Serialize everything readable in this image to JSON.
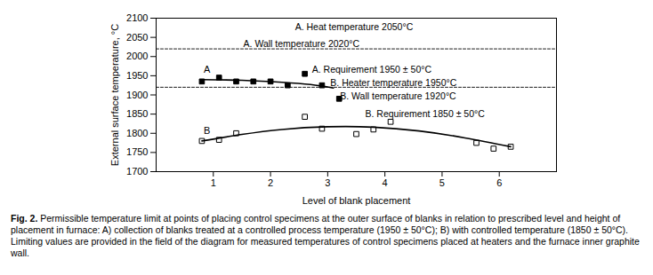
{
  "chart_data": {
    "type": "scatter",
    "xlabel": "Level of blank placement",
    "ylabel": "External surface temperature, °C",
    "xlim": [
      0,
      7
    ],
    "ylim": [
      1700,
      2100
    ],
    "xticks": [
      1,
      2,
      3,
      4,
      5,
      6
    ],
    "yticks": [
      1700,
      1750,
      1800,
      1850,
      1900,
      1950,
      2000,
      2050,
      2100
    ],
    "grid": false,
    "series": [
      {
        "type": "scatter",
        "marker": "filled_square",
        "color": "#000000",
        "x": [
          0.8,
          1.1,
          1.4,
          1.7,
          2.0,
          2.3,
          2.6,
          2.9,
          3.2
        ],
        "values": [
          1935,
          1945,
          1935,
          1935,
          1935,
          1925,
          1955,
          1925,
          1890
        ]
      },
      {
        "type": "scatter",
        "marker": "open_square",
        "color": "#000000",
        "x": [
          0.8,
          1.1,
          1.4,
          2.6,
          2.9,
          3.5,
          3.8,
          4.1,
          5.6,
          5.9,
          6.2
        ],
        "values": [
          1780,
          1783,
          1800,
          1843,
          1812,
          1798,
          1810,
          1830,
          1775,
          1760,
          1765
        ]
      },
      {
        "name": "A",
        "type": "line",
        "line_style": "solid",
        "color": "#000000",
        "x": [
          0.8,
          1.5,
          2.2,
          2.7,
          3.1
        ],
        "values": [
          1940,
          1938,
          1933,
          1927,
          1918
        ]
      },
      {
        "name": "B",
        "type": "line",
        "line_style": "solid",
        "color": "#000000",
        "x": [
          0.8,
          1.5,
          2.2,
          3.0,
          3.8,
          4.6,
          5.4,
          6.2
        ],
        "values": [
          1780,
          1797,
          1810,
          1817,
          1816,
          1806,
          1788,
          1765
        ]
      },
      {
        "type": "line",
        "line_style": "dashed",
        "color": "#000000",
        "x": [
          0,
          7
        ],
        "values": [
          2020,
          2020
        ]
      },
      {
        "type": "line",
        "line_style": "dashed",
        "color": "#000000",
        "x": [
          0,
          7
        ],
        "values": [
          1920,
          1920
        ]
      }
    ],
    "annotations": [
      "A. Heat temperature 2050°C",
      "A. Wall temperature 2020°C",
      "A. Requirement 1950 ± 50°C",
      "B. Heater temperature 1950°C",
      "B. Wall temperature 1920°C",
      "B. Requirement 1850 ± 50°C"
    ],
    "caption_label": "Fig. 2.",
    "caption": "Permissible temperature limit at points of placing control specimens at the outer surface of blanks in relation to prescribed level and height of placement in furnace: A) collection of blanks treated at a controlled process temperature (1950 ± 50°C); B) with controlled temperature (1850 ± 50°C). Limiting values are provided in the field of the diagram for measured temperatures of control specimens placed at heaters and the furnace inner graphite wall."
  }
}
